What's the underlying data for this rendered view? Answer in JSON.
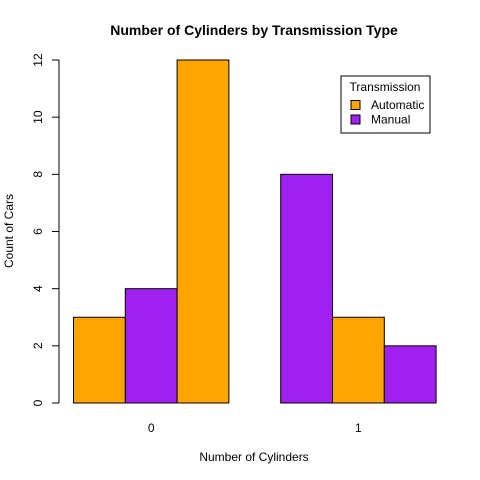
{
  "chart_data": {
    "type": "bar",
    "title": "Number of Cylinders by Transmission Type",
    "xlabel": "Number of Cylinders",
    "ylabel": "Count of Cars",
    "ylim": [
      0,
      12
    ],
    "yticks": [
      0,
      2,
      4,
      6,
      8,
      10,
      12
    ],
    "grid": false,
    "groups": [
      {
        "label": "0",
        "bars": [
          {
            "value": 3,
            "color": "#FFA500"
          },
          {
            "value": 4,
            "color": "#A020F0"
          },
          {
            "value": 12,
            "color": "#FFA500"
          }
        ]
      },
      {
        "label": "1",
        "bars": [
          {
            "value": 8,
            "color": "#A020F0"
          },
          {
            "value": 3,
            "color": "#FFA500"
          },
          {
            "value": 2,
            "color": "#A020F0"
          }
        ]
      }
    ],
    "legend": {
      "title": "Transmission",
      "placement": "top-right",
      "entries": [
        {
          "label": "Automatic",
          "color": "#FFA500"
        },
        {
          "label": "Manual",
          "color": "#A020F0"
        }
      ]
    }
  }
}
